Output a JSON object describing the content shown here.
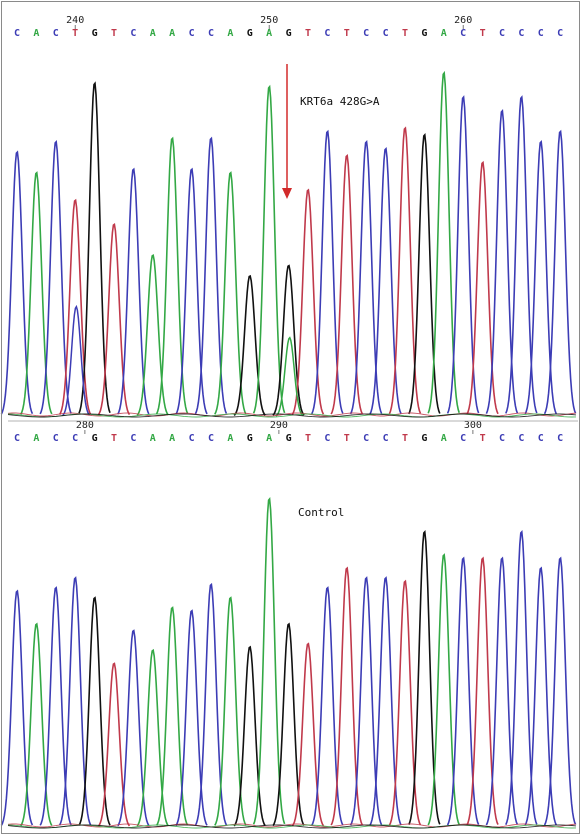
{
  "chart_data": [
    {
      "type": "line",
      "chart_kind": "sequencing chromatogram",
      "panel": "mutant",
      "annotation": "KRT6a 428G>A",
      "mutation_arrow": true,
      "sequence_top": "CACTGTCAACCAGAGTCTCCTGACTCCCC",
      "sequence_bottom": "CACCGTCAACCAGAGTCTCCTGACTCCCC",
      "top_tick_labels": [
        "240",
        "250",
        "260"
      ],
      "bottom_tick_labels": [
        "280",
        "290",
        "300"
      ],
      "peak_heights": [
        0.77,
        0.71,
        0.8,
        0.63,
        0.97,
        0.56,
        0.72,
        0.47,
        0.81,
        0.72,
        0.81,
        0.71,
        0.41,
        0.96,
        0.44,
        0.66,
        0.83,
        0.76,
        0.8,
        0.78,
        0.84,
        0.82,
        1.0,
        0.93,
        0.74,
        0.89,
        0.93,
        0.8,
        0.83
      ],
      "secondary_peaks": [
        {
          "base_index": 3,
          "base": "C",
          "height": 0.32
        },
        {
          "base_index": 14,
          "base": "A",
          "height": 0.23
        }
      ]
    },
    {
      "type": "line",
      "chart_kind": "sequencing chromatogram",
      "panel": "control",
      "annotation": "Control",
      "sequence": "CACCGTCAACCAGAGTCTCCTGACTCCCC",
      "peak_heights": [
        0.72,
        0.62,
        0.73,
        0.76,
        0.7,
        0.5,
        0.6,
        0.54,
        0.67,
        0.66,
        0.74,
        0.7,
        0.55,
        1.0,
        0.62,
        0.56,
        0.73,
        0.79,
        0.76,
        0.76,
        0.75,
        0.9,
        0.83,
        0.82,
        0.82,
        0.82,
        0.9,
        0.79,
        0.82
      ]
    }
  ],
  "base_colors": {
    "A": "#33a845",
    "C": "#3c3cb5",
    "G": "#111111",
    "T": "#c0394b"
  },
  "arrow_color": "#d22a2a"
}
